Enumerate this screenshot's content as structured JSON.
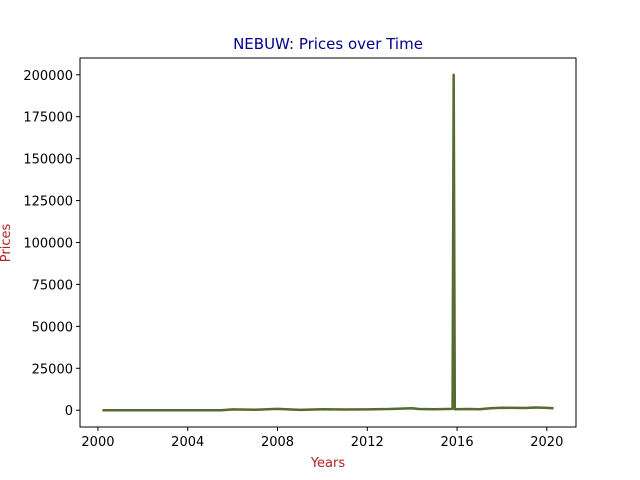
{
  "chart_data": {
    "type": "line",
    "title": "NEBUW: Prices over Time",
    "xlabel": "Years",
    "ylabel": "Prices",
    "xlim": [
      1999.2,
      2021.3
    ],
    "ylim": [
      -10000,
      210000
    ],
    "x_ticks": [
      2000,
      2004,
      2008,
      2012,
      2016,
      2020
    ],
    "x_tick_labels": [
      "2000",
      "2004",
      "2008",
      "2012",
      "2016",
      "2020"
    ],
    "y_ticks": [
      0,
      25000,
      50000,
      75000,
      100000,
      125000,
      150000,
      175000,
      200000
    ],
    "y_tick_labels": [
      "0",
      "25000",
      "50000",
      "75000",
      "100000",
      "125000",
      "150000",
      "175000",
      "200000"
    ],
    "grid": false,
    "colors": {
      "line": "#556b2f",
      "title": "#00008b",
      "axis_label": "#b22222"
    },
    "series": [
      {
        "x": [
          2000.2,
          2002,
          2004,
          2005.5,
          2006,
          2007,
          2008,
          2009,
          2010,
          2011,
          2012,
          2013,
          2014,
          2014.3,
          2015,
          2015.8,
          2015.85,
          2015.9,
          2016.5,
          2017,
          2017.5,
          2018,
          2019,
          2019.5,
          2020,
          2020.3
        ],
        "y": [
          0,
          0,
          0,
          0,
          500,
          300,
          800,
          200,
          600,
          400,
          500,
          700,
          1200,
          700,
          600,
          800,
          200000,
          600,
          700,
          600,
          1200,
          1500,
          1300,
          1600,
          1400,
          1200
        ]
      }
    ]
  }
}
